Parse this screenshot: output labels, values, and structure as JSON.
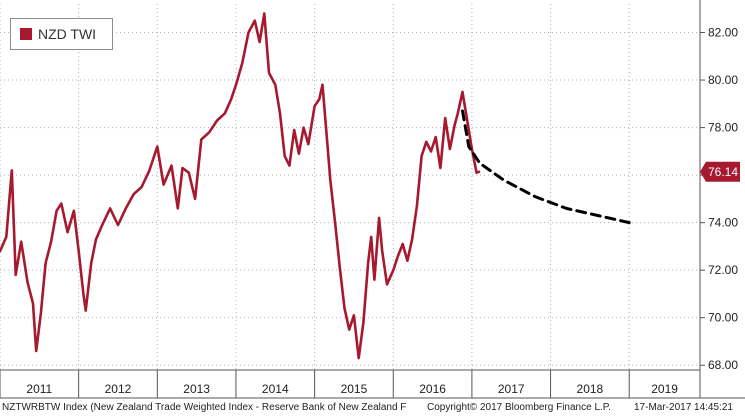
{
  "chart_data": {
    "type": "line",
    "ylim": [
      67.8,
      83.2
    ],
    "yticks": [
      68,
      70,
      72,
      74,
      76,
      78,
      80,
      82
    ],
    "ytick_labels": [
      "68.00",
      "70.00",
      "72.00",
      "74.00",
      "76.00",
      "78.00",
      "80.00",
      "82.00"
    ],
    "xlim": [
      2011.0,
      2019.9
    ],
    "year_labels": [
      "2011",
      "2012",
      "2013",
      "2014",
      "2015",
      "2016",
      "2017",
      "2018",
      "2019"
    ],
    "grid": true,
    "legend_position": "top-left",
    "series": [
      {
        "name": "NZD TWI",
        "color": "#a6192e",
        "points": [
          [
            2011.0,
            72.8
          ],
          [
            2011.08,
            73.4
          ],
          [
            2011.15,
            76.2
          ],
          [
            2011.2,
            71.8
          ],
          [
            2011.27,
            73.2
          ],
          [
            2011.35,
            71.5
          ],
          [
            2011.42,
            70.6
          ],
          [
            2011.46,
            68.6
          ],
          [
            2011.52,
            70.2
          ],
          [
            2011.58,
            72.3
          ],
          [
            2011.65,
            73.2
          ],
          [
            2011.72,
            74.5
          ],
          [
            2011.78,
            74.8
          ],
          [
            2011.86,
            73.6
          ],
          [
            2011.94,
            74.5
          ],
          [
            2012.0,
            72.8
          ],
          [
            2012.06,
            71.0
          ],
          [
            2012.09,
            70.3
          ],
          [
            2012.16,
            72.3
          ],
          [
            2012.22,
            73.3
          ],
          [
            2012.3,
            73.9
          ],
          [
            2012.4,
            74.6
          ],
          [
            2012.5,
            73.9
          ],
          [
            2012.6,
            74.6
          ],
          [
            2012.7,
            75.2
          ],
          [
            2012.8,
            75.5
          ],
          [
            2012.9,
            76.2
          ],
          [
            2013.0,
            77.2
          ],
          [
            2013.08,
            75.6
          ],
          [
            2013.18,
            76.4
          ],
          [
            2013.26,
            74.6
          ],
          [
            2013.32,
            76.3
          ],
          [
            2013.4,
            76.1
          ],
          [
            2013.48,
            75.0
          ],
          [
            2013.56,
            77.5
          ],
          [
            2013.66,
            77.8
          ],
          [
            2013.76,
            78.3
          ],
          [
            2013.86,
            78.6
          ],
          [
            2013.94,
            79.2
          ],
          [
            2014.0,
            79.8
          ],
          [
            2014.08,
            80.7
          ],
          [
            2014.16,
            82.0
          ],
          [
            2014.24,
            82.5
          ],
          [
            2014.3,
            81.6
          ],
          [
            2014.36,
            82.8
          ],
          [
            2014.42,
            80.3
          ],
          [
            2014.5,
            79.8
          ],
          [
            2014.56,
            78.6
          ],
          [
            2014.62,
            76.8
          ],
          [
            2014.68,
            76.4
          ],
          [
            2014.74,
            77.9
          ],
          [
            2014.8,
            76.9
          ],
          [
            2014.86,
            78.0
          ],
          [
            2014.92,
            77.3
          ],
          [
            2015.0,
            78.9
          ],
          [
            2015.06,
            79.2
          ],
          [
            2015.1,
            79.8
          ],
          [
            2015.16,
            77.4
          ],
          [
            2015.2,
            75.8
          ],
          [
            2015.26,
            74.0
          ],
          [
            2015.32,
            72.1
          ],
          [
            2015.38,
            70.4
          ],
          [
            2015.44,
            69.5
          ],
          [
            2015.5,
            70.1
          ],
          [
            2015.56,
            68.3
          ],
          [
            2015.62,
            69.8
          ],
          [
            2015.68,
            72.3
          ],
          [
            2015.72,
            73.4
          ],
          [
            2015.76,
            71.6
          ],
          [
            2015.82,
            74.2
          ],
          [
            2015.86,
            72.8
          ],
          [
            2015.92,
            71.4
          ],
          [
            2016.0,
            72.0
          ],
          [
            2016.06,
            72.6
          ],
          [
            2016.12,
            73.1
          ],
          [
            2016.18,
            72.4
          ],
          [
            2016.24,
            73.3
          ],
          [
            2016.3,
            74.7
          ],
          [
            2016.36,
            76.8
          ],
          [
            2016.42,
            77.4
          ],
          [
            2016.48,
            77.0
          ],
          [
            2016.54,
            77.6
          ],
          [
            2016.6,
            76.3
          ],
          [
            2016.66,
            78.4
          ],
          [
            2016.72,
            77.1
          ],
          [
            2016.78,
            78.1
          ],
          [
            2016.82,
            78.6
          ],
          [
            2016.88,
            79.5
          ],
          [
            2016.94,
            78.3
          ],
          [
            2017.0,
            77.1
          ],
          [
            2017.06,
            76.1
          ],
          [
            2017.09,
            76.14
          ]
        ]
      },
      {
        "name": "",
        "style": "dashed",
        "color": "#000000",
        "points": [
          [
            2016.88,
            78.7
          ],
          [
            2016.96,
            77.2
          ],
          [
            2017.1,
            76.5
          ],
          [
            2017.4,
            75.8
          ],
          [
            2017.8,
            75.1
          ],
          [
            2018.2,
            74.6
          ],
          [
            2018.6,
            74.3
          ],
          [
            2019.0,
            74.0
          ]
        ]
      }
    ],
    "last_value_label": "76.14"
  },
  "footer": {
    "source": "NZTWRBTW Index (New Zealand Trade Weighted Index - Reserve Bank of New Zealand F",
    "copyright": "Copyright© 2017 Bloomberg Finance L.P.",
    "timestamp": "17-Mar-2017 14:45:21"
  },
  "colors": {
    "series": "#a6192e",
    "grid": "#b0b0b0",
    "axis": "#555555"
  }
}
